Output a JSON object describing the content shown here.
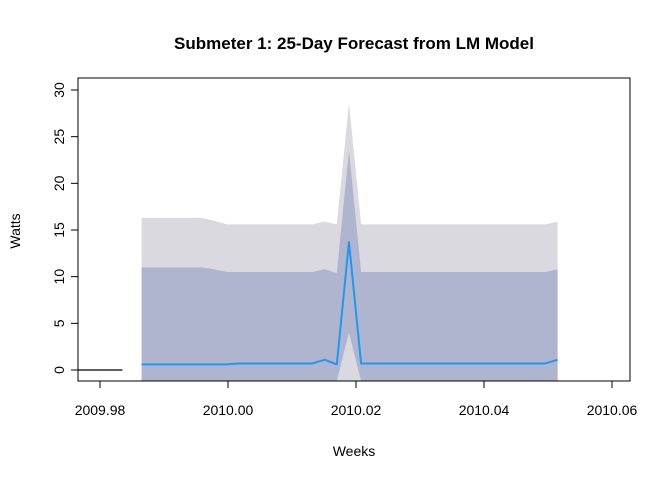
{
  "chart_data": {
    "type": "line",
    "title": "Submeter 1: 25-Day Forecast from LM Model",
    "xlabel": "Weeks",
    "ylabel": "Watts",
    "xlim": [
      2009.975,
      2010.061
    ],
    "ylim": [
      -1.2,
      31.0
    ],
    "x_ticks": [
      2009.98,
      2010.0,
      2010.02,
      2010.04,
      2010.06
    ],
    "x_tick_labels": [
      "2009.98",
      "2010.00",
      "2010.02",
      "2010.04",
      "2010.06"
    ],
    "y_ticks": [
      0,
      5,
      10,
      15,
      20,
      25,
      30
    ],
    "y_tick_labels": [
      "0",
      "5",
      "10",
      "15",
      "20",
      "25",
      "30"
    ],
    "grid": false,
    "legend": "none",
    "history": {
      "color": "#000000",
      "x": [
        2009.975,
        2009.9835
      ],
      "y": [
        0.0,
        0.0
      ]
    },
    "forecast": {
      "color": "#2196F3",
      "x": [
        2009.9865,
        2009.9883,
        2009.9902,
        2009.9921,
        2009.994,
        2009.9959,
        2009.9978,
        2009.9998,
        2010.0017,
        2010.0036,
        2010.0055,
        2010.0074,
        2010.0093,
        2010.0112,
        2010.0132,
        2010.0151,
        2010.017,
        2010.0189,
        2010.0208,
        2010.0228,
        2010.0247,
        2010.0266,
        2010.0285,
        2010.0304,
        2010.0323,
        2010.0342,
        2010.0362,
        2010.0381,
        2010.04,
        2010.0419,
        2010.0438,
        2010.0457,
        2010.0476,
        2010.0496,
        2010.0515
      ],
      "mean": [
        0.6,
        0.6,
        0.6,
        0.6,
        0.6,
        0.6,
        0.6,
        0.6,
        0.7,
        0.7,
        0.7,
        0.7,
        0.7,
        0.7,
        0.7,
        1.1,
        0.6,
        13.7,
        0.7,
        0.7,
        0.7,
        0.7,
        0.7,
        0.7,
        0.7,
        0.7,
        0.7,
        0.7,
        0.7,
        0.7,
        0.7,
        0.7,
        0.7,
        0.7,
        1.1
      ],
      "lo80": [
        -1.2,
        -1.2,
        -1.2,
        -1.2,
        -1.2,
        -1.2,
        -1.2,
        -1.2,
        -1.2,
        -1.2,
        -1.2,
        -1.2,
        -1.2,
        -1.2,
        -1.2,
        -1.2,
        -1.2,
        4.0,
        -1.2,
        -1.2,
        -1.2,
        -1.2,
        -1.2,
        -1.2,
        -1.2,
        -1.2,
        -1.2,
        -1.2,
        -1.2,
        -1.2,
        -1.2,
        -1.2,
        -1.2,
        -1.2,
        -1.2
      ],
      "hi80": [
        11.0,
        11.0,
        11.0,
        11.0,
        11.0,
        11.0,
        10.8,
        10.5,
        10.5,
        10.5,
        10.5,
        10.5,
        10.5,
        10.5,
        10.5,
        10.8,
        10.4,
        23.5,
        10.5,
        10.5,
        10.5,
        10.5,
        10.5,
        10.5,
        10.5,
        10.5,
        10.5,
        10.5,
        10.5,
        10.5,
        10.5,
        10.5,
        10.5,
        10.5,
        10.8
      ],
      "lo95": [
        -1.2,
        -1.2,
        -1.2,
        -1.2,
        -1.2,
        -1.2,
        -1.2,
        -1.2,
        -1.2,
        -1.2,
        -1.2,
        -1.2,
        -1.2,
        -1.2,
        -1.2,
        -1.2,
        -1.2,
        -1.2,
        -1.2,
        -1.2,
        -1.2,
        -1.2,
        -1.2,
        -1.2,
        -1.2,
        -1.2,
        -1.2,
        -1.2,
        -1.2,
        -1.2,
        -1.2,
        -1.2,
        -1.2,
        -1.2,
        -1.2
      ],
      "hi95": [
        16.3,
        16.3,
        16.3,
        16.3,
        16.3,
        16.3,
        16.0,
        15.6,
        15.6,
        15.6,
        15.6,
        15.6,
        15.6,
        15.6,
        15.6,
        15.9,
        15.6,
        28.6,
        15.6,
        15.6,
        15.6,
        15.6,
        15.6,
        15.6,
        15.6,
        15.6,
        15.6,
        15.6,
        15.6,
        15.6,
        15.6,
        15.6,
        15.6,
        15.6,
        15.9
      ],
      "band80_color": "#B0B5CF",
      "band95_color": "#DAD9DF"
    }
  }
}
